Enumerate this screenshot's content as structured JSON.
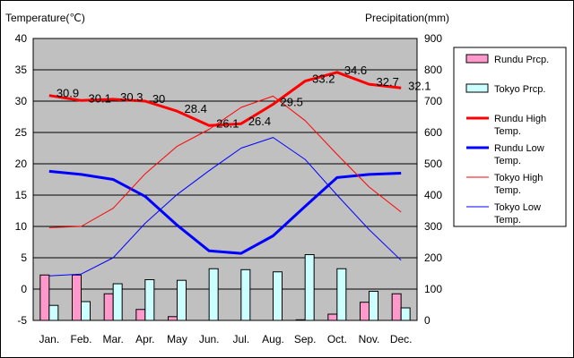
{
  "chart_data": {
    "type": "bar+line",
    "y_left_label": "Temperature(℃)",
    "y_right_label": "Precipitation(mm)",
    "y_left_range": [
      -5,
      40
    ],
    "y_right_range": [
      0,
      900
    ],
    "y_left_ticks": [
      "40",
      "35",
      "30",
      "25",
      "20",
      "15",
      "10",
      "5",
      "0",
      "-5"
    ],
    "y_right_ticks": [
      "900",
      "800",
      "700",
      "600",
      "500",
      "400",
      "300",
      "200",
      "100",
      "0"
    ],
    "categories": [
      "Jan.",
      "Feb.",
      "Mar.",
      "Apr.",
      "May",
      "Jun.",
      "Jul.",
      "Aug.",
      "Sep.",
      "Oct.",
      "Nov.",
      "Dec."
    ],
    "grid": "horizontal",
    "legend_position": "right",
    "bar_series": [
      {
        "name": "Rundu Prcp.",
        "color": "#ff99cc",
        "values": [
          145,
          145,
          85,
          35,
          12,
          0,
          0,
          0,
          2,
          20,
          58,
          85
        ]
      },
      {
        "name": "Tokyo Prcp.",
        "color": "#ccffff",
        "values": [
          48,
          60,
          117,
          130,
          128,
          165,
          162,
          155,
          210,
          165,
          93,
          40
        ]
      }
    ],
    "line_series": [
      {
        "name": "Rundu High Temp.",
        "color": "#ff0000",
        "width": 3,
        "values": [
          30.9,
          30.1,
          30.3,
          30.0,
          28.4,
          26.1,
          26.4,
          29.5,
          33.2,
          34.6,
          32.7,
          32.1
        ],
        "labels": [
          "30.9",
          "30.1",
          "30.3",
          "30",
          "28.4",
          "26.1",
          "26.4",
          "29.5",
          "33.2",
          "34.6",
          "32.7",
          "32.1"
        ]
      },
      {
        "name": "Rundu Low Temp.",
        "color": "#0000ff",
        "width": 3,
        "values": [
          18.8,
          18.3,
          17.5,
          14.8,
          10.2,
          6.1,
          5.7,
          8.5,
          13.2,
          17.8,
          18.3,
          18.5
        ]
      },
      {
        "name": "Tokyo High Temp.",
        "color": "#ff0000",
        "width": 1,
        "values": [
          9.8,
          10.0,
          12.9,
          18.4,
          22.8,
          25.5,
          29.0,
          30.8,
          26.9,
          21.5,
          16.3,
          12.3
        ]
      },
      {
        "name": "Tokyo Low Temp.",
        "color": "#0000ff",
        "width": 1,
        "values": [
          2.1,
          2.4,
          5.0,
          10.5,
          15.1,
          18.9,
          22.5,
          24.2,
          20.7,
          15.0,
          9.5,
          4.6
        ]
      }
    ],
    "legend": [
      {
        "label": "Rundu Prcp.",
        "kind": "bar",
        "color": "#ff99cc"
      },
      {
        "label": "Tokyo Prcp.",
        "kind": "bar",
        "color": "#ccffff"
      },
      {
        "label": "Rundu High\nTemp.",
        "kind": "line",
        "color": "#ff0000",
        "width": 3
      },
      {
        "label": "Rundu Low\nTemp.",
        "kind": "line",
        "color": "#0000ff",
        "width": 3
      },
      {
        "label": "Tokyo High\nTemp.",
        "kind": "line",
        "color": "#ff0000",
        "width": 1
      },
      {
        "label": "Tokyo Low\nTemp.",
        "kind": "line",
        "color": "#0000ff",
        "width": 1
      }
    ],
    "colors": {
      "plot_bg": "#c0c0c0",
      "grid": "#000000"
    }
  }
}
